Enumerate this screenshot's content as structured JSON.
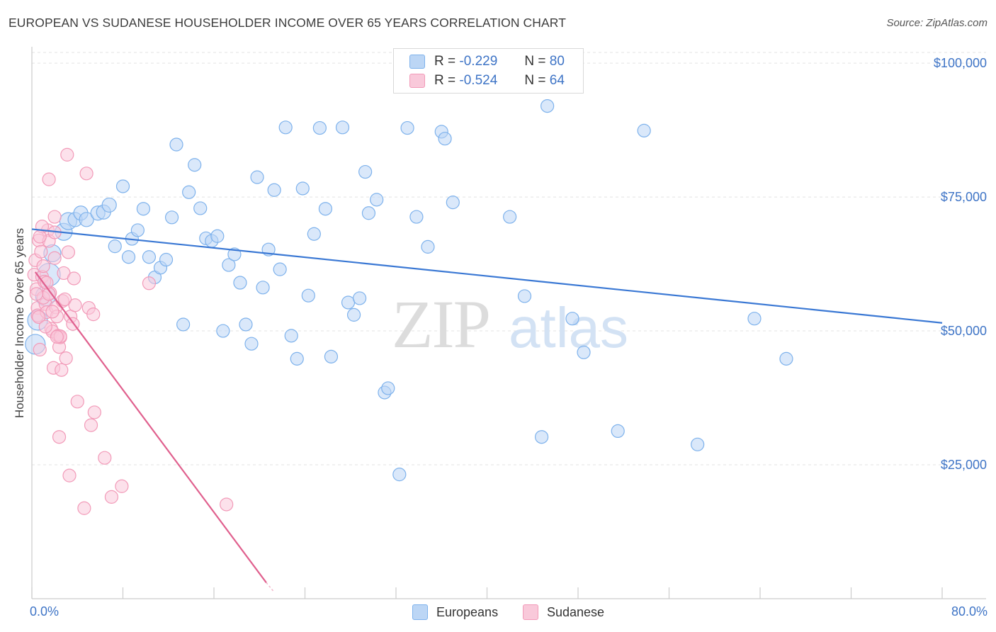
{
  "title": "EUROPEAN VS SUDANESE HOUSEHOLDER INCOME OVER 65 YEARS CORRELATION CHART",
  "source": "Source: ZipAtlas.com",
  "watermark": {
    "zip": "ZIP",
    "atlas": "atlas"
  },
  "legend": {
    "r_label": "R =",
    "n_label": "N =",
    "rows": [
      {
        "r": "-0.229",
        "n": "80",
        "color": "#7eb2ec",
        "fill": "#bcd6f5"
      },
      {
        "r": "-0.524",
        "n": "64",
        "color": "#f29ab8",
        "fill": "#f9c9da"
      }
    ]
  },
  "bottom_legend": [
    "Europeans",
    "Sudanese"
  ],
  "chart_data": {
    "type": "scatter",
    "title": "EUROPEAN VS SUDANESE HOUSEHOLDER INCOME OVER 65 YEARS CORRELATION CHART",
    "xlabel": "",
    "ylabel": "Householder Income Over 65 years",
    "xlim": [
      0,
      80
    ],
    "ylim": [
      0,
      102000
    ],
    "x_tick_labels": [
      "0.0%",
      "80.0%"
    ],
    "y_ticks": [
      25000,
      50000,
      75000,
      100000
    ],
    "y_tick_labels": [
      "$25,000",
      "$50,000",
      "$75,000",
      "$100,000"
    ],
    "grid": true,
    "series": [
      {
        "name": "Europeans",
        "color": "#3a78d4",
        "marker_fill": "#bcd6f5",
        "marker_stroke": "#7eb2ec",
        "trend": {
          "x": [
            0,
            80
          ],
          "y": [
            69000,
            51500
          ]
        },
        "points": [
          [
            0.3,
            47500,
            14
          ],
          [
            0.5,
            52000,
            14
          ],
          [
            1.2,
            56500,
            14
          ],
          [
            1.5,
            60500,
            16
          ],
          [
            1.8,
            64500,
            12
          ],
          [
            2.8,
            68500,
            12
          ],
          [
            3.2,
            70500,
            12
          ],
          [
            3.8,
            70800,
            10
          ],
          [
            4.3,
            72000,
            10
          ],
          [
            4.8,
            70800,
            10
          ],
          [
            5.8,
            72000,
            10
          ],
          [
            6.3,
            72200,
            10
          ],
          [
            6.8,
            73500,
            10
          ],
          [
            7.3,
            65800,
            9
          ],
          [
            8.0,
            77000,
            9
          ],
          [
            8.5,
            63800,
            9
          ],
          [
            8.8,
            67200,
            9
          ],
          [
            9.3,
            68800,
            9
          ],
          [
            9.8,
            72800,
            9
          ],
          [
            10.3,
            63800,
            9
          ],
          [
            10.8,
            60000,
            9
          ],
          [
            11.3,
            61800,
            9
          ],
          [
            11.8,
            63300,
            9
          ],
          [
            12.3,
            71200,
            9
          ],
          [
            12.7,
            84800,
            9
          ],
          [
            13.3,
            51200,
            9
          ],
          [
            13.8,
            75900,
            9
          ],
          [
            14.3,
            81000,
            9
          ],
          [
            14.8,
            72900,
            9
          ],
          [
            15.3,
            67300,
            9
          ],
          [
            15.8,
            66800,
            9
          ],
          [
            16.3,
            67700,
            9
          ],
          [
            16.8,
            50000,
            9
          ],
          [
            17.3,
            62300,
            9
          ],
          [
            17.8,
            64300,
            9
          ],
          [
            18.3,
            59000,
            9
          ],
          [
            18.8,
            51200,
            9
          ],
          [
            19.3,
            47600,
            9
          ],
          [
            19.8,
            78700,
            9
          ],
          [
            20.3,
            58100,
            9
          ],
          [
            20.8,
            65200,
            9
          ],
          [
            21.3,
            76300,
            9
          ],
          [
            21.8,
            61500,
            9
          ],
          [
            22.3,
            88000,
            9
          ],
          [
            22.8,
            49100,
            9
          ],
          [
            23.3,
            44800,
            9
          ],
          [
            23.8,
            76600,
            9
          ],
          [
            24.3,
            56600,
            9
          ],
          [
            24.8,
            68100,
            9
          ],
          [
            25.3,
            87900,
            9
          ],
          [
            25.8,
            72800,
            9
          ],
          [
            26.3,
            45200,
            9
          ],
          [
            27.3,
            88000,
            9
          ],
          [
            27.8,
            55300,
            9
          ],
          [
            28.3,
            53000,
            9
          ],
          [
            28.8,
            56100,
            9
          ],
          [
            29.3,
            79700,
            9
          ],
          [
            29.6,
            72000,
            9
          ],
          [
            30.3,
            74500,
            9
          ],
          [
            31.0,
            38500,
            9
          ],
          [
            31.3,
            39300,
            9
          ],
          [
            32.3,
            23200,
            9
          ],
          [
            33.0,
            87900,
            9
          ],
          [
            33.8,
            71300,
            9
          ],
          [
            34.8,
            65700,
            9
          ],
          [
            36.0,
            87200,
            9
          ],
          [
            36.3,
            85900,
            9
          ],
          [
            37.0,
            74000,
            9
          ],
          [
            42.0,
            71300,
            9
          ],
          [
            43.3,
            56500,
            9
          ],
          [
            44.8,
            30200,
            9
          ],
          [
            47.5,
            52300,
            9
          ],
          [
            48.5,
            46000,
            9
          ],
          [
            45.3,
            92000,
            9
          ],
          [
            51.5,
            31300,
            9
          ],
          [
            53.8,
            87400,
            9
          ],
          [
            58.5,
            28800,
            9
          ],
          [
            63.5,
            52300,
            9
          ],
          [
            66.3,
            44800,
            9
          ],
          [
            31.5,
            45000,
            0
          ]
        ]
      },
      {
        "name": "Sudanese",
        "color": "#e0608e",
        "marker_fill": "#f9c9da",
        "marker_stroke": "#f29ab8",
        "trend": {
          "x": [
            0.3,
            20.6
          ],
          "y": [
            61000,
            3000
          ]
        },
        "points": [
          [
            0.2,
            60500,
            9
          ],
          [
            0.3,
            63200,
            9
          ],
          [
            0.4,
            57800,
            9
          ],
          [
            0.5,
            54300,
            9
          ],
          [
            0.5,
            52900,
            9
          ],
          [
            0.6,
            66900,
            9
          ],
          [
            0.7,
            46500,
            9
          ],
          [
            0.8,
            64800,
            9
          ],
          [
            0.9,
            60100,
            9
          ],
          [
            1.0,
            62100,
            9
          ],
          [
            1.1,
            59200,
            9
          ],
          [
            1.2,
            55000,
            9
          ],
          [
            1.3,
            53500,
            9
          ],
          [
            1.4,
            68800,
            9
          ],
          [
            1.5,
            66800,
            9
          ],
          [
            1.5,
            78300,
            9
          ],
          [
            1.6,
            57100,
            9
          ],
          [
            1.7,
            50400,
            9
          ],
          [
            1.8,
            49900,
            9
          ],
          [
            1.9,
            43100,
            9
          ],
          [
            2.0,
            63600,
            9
          ],
          [
            2.0,
            71300,
            9
          ],
          [
            2.1,
            54400,
            9
          ],
          [
            2.2,
            52700,
            9
          ],
          [
            2.3,
            49100,
            9
          ],
          [
            2.4,
            47000,
            9
          ],
          [
            2.5,
            48800,
            9
          ],
          [
            2.6,
            42700,
            9
          ],
          [
            2.7,
            55600,
            9
          ],
          [
            2.8,
            60800,
            9
          ],
          [
            2.9,
            55900,
            9
          ],
          [
            3.0,
            44900,
            9
          ],
          [
            3.1,
            82900,
            9
          ],
          [
            3.2,
            64700,
            9
          ],
          [
            3.3,
            23000,
            9
          ],
          [
            3.4,
            52700,
            9
          ],
          [
            3.6,
            51300,
            9
          ],
          [
            3.7,
            59800,
            9
          ],
          [
            3.8,
            54800,
            9
          ],
          [
            4.0,
            36800,
            9
          ],
          [
            2.4,
            30200,
            9
          ],
          [
            2.0,
            68400,
            9
          ],
          [
            4.6,
            16900,
            9
          ],
          [
            4.8,
            79400,
            9
          ],
          [
            5.0,
            54300,
            9
          ],
          [
            5.4,
            53100,
            9
          ],
          [
            5.2,
            32400,
            9
          ],
          [
            5.5,
            34800,
            9
          ],
          [
            6.4,
            26300,
            9
          ],
          [
            7.0,
            19000,
            9
          ],
          [
            7.9,
            21000,
            9
          ],
          [
            10.3,
            58900,
            9
          ],
          [
            17.1,
            17600,
            9
          ],
          [
            1.0,
            56200,
            9
          ],
          [
            1.5,
            56900,
            9
          ],
          [
            2.5,
            49000,
            9
          ],
          [
            0.9,
            69500,
            9
          ],
          [
            0.7,
            67600,
            9
          ],
          [
            1.3,
            59000,
            9
          ],
          [
            1.8,
            53600,
            9
          ],
          [
            2.2,
            48900,
            9
          ],
          [
            0.4,
            56900,
            9
          ],
          [
            0.6,
            52600,
            9
          ],
          [
            1.2,
            50800,
            9
          ]
        ]
      }
    ]
  }
}
